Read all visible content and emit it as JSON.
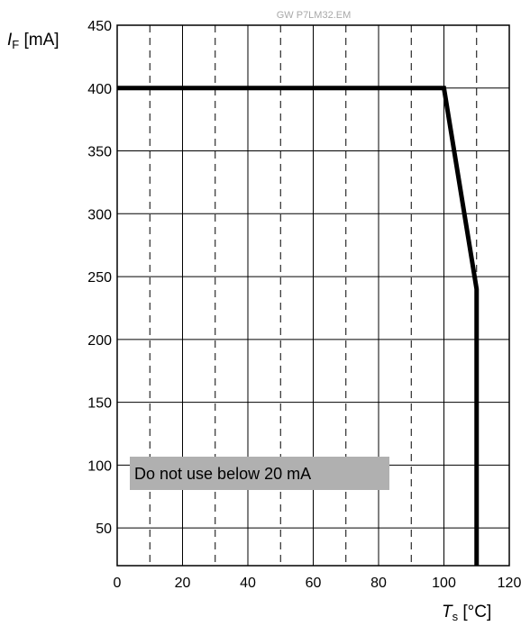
{
  "chart_data": {
    "type": "line",
    "watermark": "GW P7LM32.EM",
    "ylabel": {
      "symbol": "I",
      "subscript": "F",
      "unit": " [mA]"
    },
    "xlabel": {
      "symbol": "T",
      "subscript": "s",
      "unit": " [°C]"
    },
    "xlim": [
      0,
      120
    ],
    "ylim": [
      20,
      450
    ],
    "x_ticks": [
      0,
      20,
      40,
      60,
      80,
      100,
      120
    ],
    "y_ticks": [
      50,
      100,
      150,
      200,
      250,
      300,
      350,
      400,
      450
    ],
    "x_grid_solid": [
      20,
      40,
      60,
      80,
      100
    ],
    "x_grid_dashed": [
      10,
      30,
      50,
      70,
      90,
      110
    ],
    "y_grid": [
      50,
      100,
      150,
      200,
      250,
      300,
      350,
      400
    ],
    "series": [
      {
        "x": [
          0,
          100,
          110,
          110
        ],
        "y": [
          400,
          400,
          240,
          20
        ]
      }
    ],
    "annotation": {
      "text": "Do not use below 20 mA",
      "color": "#b0b0b0"
    }
  }
}
